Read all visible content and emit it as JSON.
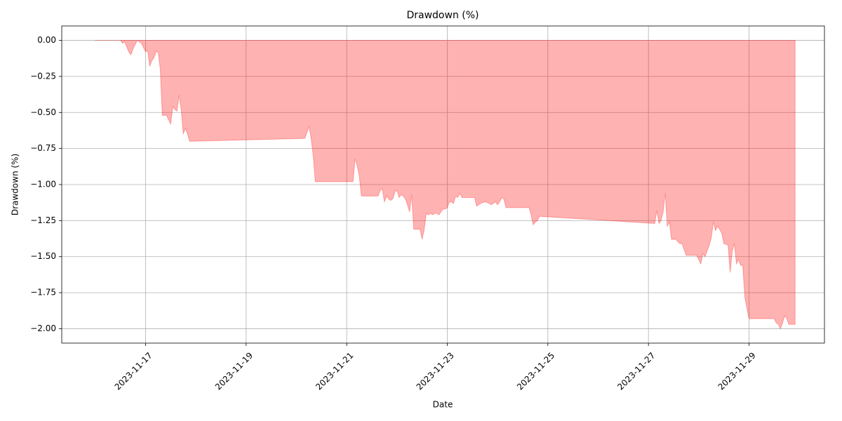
{
  "chart_data": {
    "type": "area",
    "title": "Drawdown (%)",
    "x_label": "Date",
    "y_label": "Drawdown (%)",
    "color": "#ff0000",
    "fill_opacity": 0.3,
    "grid": true,
    "xlim": [
      "2023-11-15 08:00",
      "2023-11-30 12:00"
    ],
    "xticks": [
      "2023-11-17",
      "2023-11-19",
      "2023-11-21",
      "2023-11-23",
      "2023-11-25",
      "2023-11-27",
      "2023-11-29"
    ],
    "ylim": [
      -2.1,
      0.1
    ],
    "yticks": [
      {
        "value": 0,
        "label": "0.00"
      },
      {
        "value": -0.25,
        "label": "−0.25"
      },
      {
        "value": -0.5,
        "label": "−0.50"
      },
      {
        "value": -0.75,
        "label": "−0.75"
      },
      {
        "value": -1,
        "label": "−1.00"
      },
      {
        "value": -1.25,
        "label": "−1.25"
      },
      {
        "value": -1.5,
        "label": "−1.50"
      },
      {
        "value": -1.75,
        "label": "−1.75"
      },
      {
        "value": -2,
        "label": "−2.00"
      }
    ],
    "x": [
      "2023-11-16 00:00",
      "2023-11-16 12:00",
      "2023-11-16 13:00",
      "2023-11-16 14:00",
      "2023-11-16 16:00",
      "2023-11-16 17:00",
      "2023-11-16 18:00",
      "2023-11-16 20:00",
      "2023-11-16 22:00",
      "2023-11-17 00:00",
      "2023-11-17 01:00",
      "2023-11-17 02:00",
      "2023-11-17 03:00",
      "2023-11-17 04:00",
      "2023-11-17 05:00",
      "2023-11-17 06:00",
      "2023-11-17 07:00",
      "2023-11-17 08:00",
      "2023-11-17 10:00",
      "2023-11-17 12:00",
      "2023-11-17 13:00",
      "2023-11-17 14:00",
      "2023-11-17 15:00",
      "2023-11-17 16:00",
      "2023-11-17 17:00",
      "2023-11-17 18:00",
      "2023-11-17 19:00",
      "2023-11-17 20:00",
      "2023-11-17 21:00",
      "2023-11-20 04:00",
      "2023-11-20 06:00",
      "2023-11-20 07:00",
      "2023-11-20 08:00",
      "2023-11-20 09:00",
      "2023-11-21 03:00",
      "2023-11-21 04:00",
      "2023-11-21 05:00",
      "2023-11-21 06:00",
      "2023-11-21 07:00",
      "2023-11-21 15:00",
      "2023-11-21 16:00",
      "2023-11-21 17:00",
      "2023-11-21 18:00",
      "2023-11-21 19:00",
      "2023-11-21 20:00",
      "2023-11-21 21:00",
      "2023-11-21 22:00",
      "2023-11-21 23:00",
      "2023-11-22 00:00",
      "2023-11-22 01:00",
      "2023-11-22 02:00",
      "2023-11-22 03:00",
      "2023-11-22 04:00",
      "2023-11-22 05:00",
      "2023-11-22 06:00",
      "2023-11-22 07:00",
      "2023-11-22 08:00",
      "2023-11-22 11:00",
      "2023-11-22 12:00",
      "2023-11-22 13:00",
      "2023-11-22 14:00",
      "2023-11-22 15:00",
      "2023-11-22 16:00",
      "2023-11-22 17:00",
      "2023-11-22 18:00",
      "2023-11-22 19:00",
      "2023-11-22 20:00",
      "2023-11-22 21:00",
      "2023-11-22 22:00",
      "2023-11-22 23:00",
      "2023-11-23 00:00",
      "2023-11-23 01:00",
      "2023-11-23 02:00",
      "2023-11-23 03:00",
      "2023-11-23 04:00",
      "2023-11-23 05:00",
      "2023-11-23 06:00",
      "2023-11-23 07:00",
      "2023-11-23 13:00",
      "2023-11-23 14:00",
      "2023-11-23 15:00",
      "2023-11-23 16:00",
      "2023-11-23 18:00",
      "2023-11-23 20:00",
      "2023-11-23 21:00",
      "2023-11-23 22:00",
      "2023-11-23 23:00",
      "2023-11-24 00:00",
      "2023-11-24 01:00",
      "2023-11-24 02:00",
      "2023-11-24 03:00",
      "2023-11-24 04:00",
      "2023-11-24 15:00",
      "2023-11-24 16:00",
      "2023-11-24 17:00",
      "2023-11-24 18:00",
      "2023-11-24 19:00",
      "2023-11-24 20:00",
      "2023-11-27 03:00",
      "2023-11-27 04:00",
      "2023-11-27 05:00",
      "2023-11-27 06:00",
      "2023-11-27 07:00",
      "2023-11-27 08:00",
      "2023-11-27 09:00",
      "2023-11-27 10:00",
      "2023-11-27 11:00",
      "2023-11-27 13:00",
      "2023-11-27 15:00",
      "2023-11-27 16:00",
      "2023-11-27 18:00",
      "2023-11-27 23:00",
      "2023-11-28 01:00",
      "2023-11-28 02:00",
      "2023-11-28 03:00",
      "2023-11-28 05:00",
      "2023-11-28 06:00",
      "2023-11-28 07:00",
      "2023-11-28 08:00",
      "2023-11-28 09:00",
      "2023-11-28 10:00",
      "2023-11-28 11:00",
      "2023-11-28 12:00",
      "2023-11-28 14:00",
      "2023-11-28 15:00",
      "2023-11-28 16:00",
      "2023-11-28 17:00",
      "2023-11-28 18:00",
      "2023-11-28 19:00",
      "2023-11-28 20:00",
      "2023-11-28 21:00",
      "2023-11-28 22:00",
      "2023-11-28 23:00",
      "2023-11-29 00:00",
      "2023-11-29 12:00",
      "2023-11-29 13:00",
      "2023-11-29 14:00",
      "2023-11-29 15:00",
      "2023-11-29 16:00",
      "2023-11-29 17:00",
      "2023-11-29 18:00",
      "2023-11-29 19:00",
      "2023-11-29 22:00"
    ],
    "values": [
      0,
      0,
      -0.02,
      -0.01,
      -0.08,
      -0.1,
      -0.06,
      0,
      -0.02,
      -0.08,
      -0.07,
      -0.18,
      -0.14,
      -0.12,
      -0.08,
      -0.08,
      -0.2,
      -0.52,
      -0.52,
      -0.58,
      -0.46,
      -0.48,
      -0.49,
      -0.38,
      -0.48,
      -0.65,
      -0.61,
      -0.65,
      -0.7,
      -0.68,
      -0.6,
      -0.68,
      -0.8,
      -0.98,
      -0.98,
      -0.82,
      -0.87,
      -0.94,
      -1.08,
      -1.08,
      -1.04,
      -1.03,
      -1.12,
      -1.08,
      -1.1,
      -1.11,
      -1.1,
      -1.05,
      -1.04,
      -1.09,
      -1.07,
      -1.08,
      -1.1,
      -1.14,
      -1.19,
      -1.07,
      -1.31,
      -1.31,
      -1.38,
      -1.31,
      -1.2,
      -1.21,
      -1.2,
      -1.21,
      -1.2,
      -1.2,
      -1.21,
      -1.19,
      -1.17,
      -1.17,
      -1.16,
      -1.12,
      -1.12,
      -1.13,
      -1.08,
      -1.09,
      -1.06,
      -1.09,
      -1.09,
      -1.15,
      -1.14,
      -1.13,
      -1.12,
      -1.13,
      -1.14,
      -1.13,
      -1.12,
      -1.14,
      -1.12,
      -1.09,
      -1.1,
      -1.16,
      -1.16,
      -1.21,
      -1.28,
      -1.26,
      -1.25,
      -1.22,
      -1.27,
      -1.18,
      -1.27,
      -1.25,
      -1.19,
      -1.06,
      -1.29,
      -1.26,
      -1.38,
      -1.38,
      -1.41,
      -1.41,
      -1.49,
      -1.49,
      -1.55,
      -1.48,
      -1.5,
      -1.42,
      -1.37,
      -1.26,
      -1.32,
      -1.29,
      -1.31,
      -1.34,
      -1.41,
      -1.42,
      -1.61,
      -1.46,
      -1.41,
      -1.55,
      -1.52,
      -1.56,
      -1.56,
      -1.78,
      -1.86,
      -1.93,
      -1.93,
      -1.96,
      -1.97,
      -2,
      -1.96,
      -1.91,
      -1.93,
      -1.97,
      -1.97
    ]
  }
}
